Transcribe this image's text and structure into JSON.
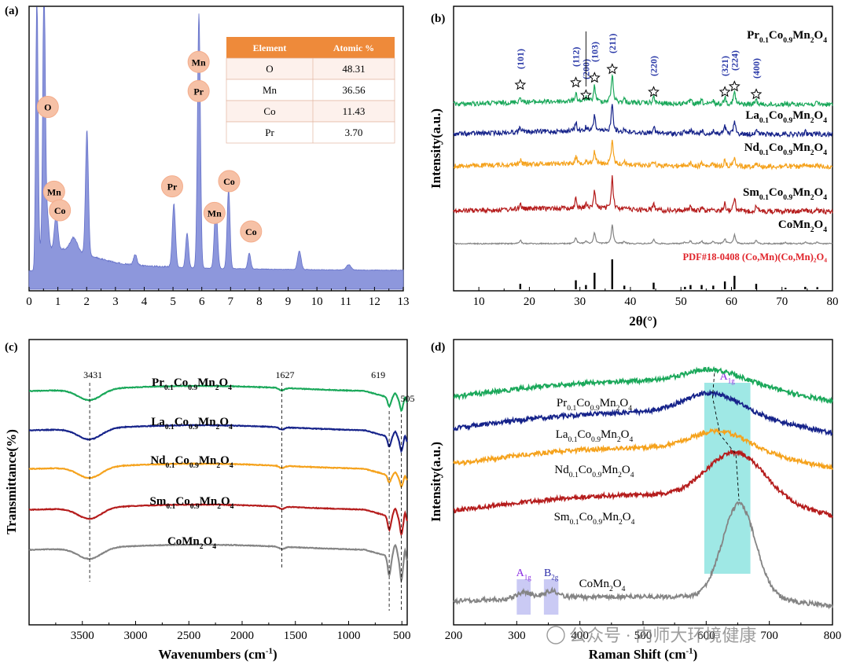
{
  "panels": {
    "a": {
      "label": "(a)",
      "chart_data": {
        "type": "area",
        "xlim": [
          0,
          13
        ],
        "xticks": [
          "0",
          "1",
          "2",
          "3",
          "4",
          "5",
          "6",
          "7",
          "8",
          "9",
          "10",
          "11",
          "12",
          "13"
        ],
        "peaks": [
          {
            "x": 0.27,
            "y": 1.02,
            "w": 0.04
          },
          {
            "x": 0.52,
            "y": 1.02,
            "w": 0.045
          },
          {
            "x": 0.64,
            "y": 0.12,
            "w": 0.05
          },
          {
            "x": 0.94,
            "y": 0.13,
            "w": 0.06
          },
          {
            "x": 1.55,
            "y": 0.05,
            "w": 0.12
          },
          {
            "x": 2.01,
            "y": 0.47,
            "w": 0.05
          },
          {
            "x": 3.69,
            "y": 0.04,
            "w": 0.06
          },
          {
            "x": 5.03,
            "y": 0.24,
            "w": 0.055
          },
          {
            "x": 5.49,
            "y": 0.13,
            "w": 0.05
          },
          {
            "x": 5.9,
            "y": 0.96,
            "w": 0.05
          },
          {
            "x": 6.49,
            "y": 0.24,
            "w": 0.055
          },
          {
            "x": 6.93,
            "y": 0.3,
            "w": 0.05
          },
          {
            "x": 7.65,
            "y": 0.06,
            "w": 0.05
          },
          {
            "x": 9.39,
            "y": 0.07,
            "w": 0.06
          },
          {
            "x": 11.1,
            "y": 0.02,
            "w": 0.08
          }
        ],
        "peak_labels": [
          {
            "text": "O",
            "x": 0.65,
            "y": 0.62
          },
          {
            "text": "Mn",
            "x": 0.87,
            "y": 0.3
          },
          {
            "text": "Co",
            "x": 1.07,
            "y": 0.23
          },
          {
            "text": "Pr",
            "x": 4.97,
            "y": 0.32
          },
          {
            "text": "Mn",
            "x": 5.89,
            "y": 0.79
          },
          {
            "text": "Pr",
            "x": 5.89,
            "y": 0.68
          },
          {
            "text": "Mn",
            "x": 6.44,
            "y": 0.22
          },
          {
            "text": "Co",
            "x": 6.95,
            "y": 0.34
          },
          {
            "text": "Co",
            "x": 7.71,
            "y": 0.15
          }
        ],
        "table": {
          "headers": [
            "Element",
            "Atomic %"
          ],
          "rows": [
            [
              "O",
              "48.31"
            ],
            [
              "Mn",
              "36.56"
            ],
            [
              "Co",
              "11.43"
            ],
            [
              "Pr",
              "3.70"
            ]
          ]
        },
        "colors": {
          "fill": "#8d97dc",
          "line": "#6470c8",
          "badge": "#f6c1a6",
          "header": "#ee8a3a"
        }
      }
    },
    "b": {
      "label": "(b)",
      "chart_data": {
        "type": "line",
        "xlabel": "2θ(°)",
        "ylabel": "Intensity(a.u.)",
        "xlim": [
          5,
          80
        ],
        "xticks": [
          "10",
          "20",
          "30",
          "40",
          "50",
          "60",
          "70",
          "80"
        ],
        "peaks": [
          [
            18.2,
            0.18
          ],
          [
            29.2,
            0.3
          ],
          [
            31.2,
            0.14
          ],
          [
            32.9,
            0.55
          ],
          [
            36.4,
            1.0
          ],
          [
            38.8,
            0.12
          ],
          [
            44.6,
            0.22
          ],
          [
            50.8,
            0.08
          ],
          [
            51.9,
            0.14
          ],
          [
            54.1,
            0.14
          ],
          [
            56.4,
            0.12
          ],
          [
            58.7,
            0.26
          ],
          [
            60.6,
            0.45
          ],
          [
            64.9,
            0.18
          ],
          [
            70.7,
            0.05
          ],
          [
            74.6,
            0.08
          ],
          [
            77.0,
            0.07
          ]
        ],
        "series": [
          {
            "name_parts": [
              [
                "Pr",
                ""
              ],
              [
                "0.1",
                "sub"
              ],
              [
                "Co",
                ""
              ],
              [
                "0.9",
                "sub"
              ],
              [
                "Mn",
                ""
              ],
              [
                "2",
                "sub"
              ],
              [
                "O",
                ""
              ],
              [
                "4",
                "sub"
              ]
            ],
            "color": "#1aa85a"
          },
          {
            "name_parts": [
              [
                "La",
                ""
              ],
              [
                "0.1",
                "sub"
              ],
              [
                "Co",
                ""
              ],
              [
                "0.9",
                "sub"
              ],
              [
                "Mn",
                ""
              ],
              [
                "2",
                "sub"
              ],
              [
                "O",
                ""
              ],
              [
                "4",
                "sub"
              ]
            ],
            "color": "#16238a"
          },
          {
            "name_parts": [
              [
                "Nd",
                ""
              ],
              [
                "0.1",
                "sub"
              ],
              [
                "Co",
                ""
              ],
              [
                "0.9",
                "sub"
              ],
              [
                "Mn",
                ""
              ],
              [
                "2",
                "sub"
              ],
              [
                "O",
                ""
              ],
              [
                "4",
                "sub"
              ]
            ],
            "color": "#f5a21c"
          },
          {
            "name_parts": [
              [
                "Sm",
                ""
              ],
              [
                "0.1",
                "sub"
              ],
              [
                "Co",
                ""
              ],
              [
                "0.9",
                "sub"
              ],
              [
                "Mn",
                ""
              ],
              [
                "2",
                "sub"
              ],
              [
                "O",
                ""
              ],
              [
                "4",
                "sub"
              ]
            ],
            "color": "#b51c1c"
          },
          {
            "name_parts": [
              [
                "CoMn",
                ""
              ],
              [
                "2",
                "sub"
              ],
              [
                "O",
                ""
              ],
              [
                "4",
                "sub"
              ]
            ],
            "color": "#848484"
          }
        ],
        "reference_label": "PDF#18-0408 (Co,Mn)(Co,Mn)₂O₄",
        "reference_color": "#e0242b",
        "hkl": [
          {
            "text": "(101)",
            "x": 18.2
          },
          {
            "text": "(112)",
            "x": 29.2
          },
          {
            "text": "(200)",
            "x": 31.2
          },
          {
            "text": "(103)",
            "x": 32.9
          },
          {
            "text": "(211)",
            "x": 36.4
          },
          {
            "text": "(220)",
            "x": 44.6
          },
          {
            "text": "(321)",
            "x": 58.7
          },
          {
            "text": "(224)",
            "x": 60.6
          },
          {
            "text": "(400)",
            "x": 64.9
          }
        ],
        "star": "☆"
      }
    },
    "c": {
      "label": "(c)",
      "chart_data": {
        "type": "line",
        "xlabel_parts": [
          [
            "Wavenumbers (cm",
            ""
          ],
          [
            "-1",
            "sup"
          ],
          [
            ")",
            ""
          ]
        ],
        "ylabel": "Transmittance(%)",
        "xlim": [
          4000,
          450
        ],
        "xticks": [
          "3500",
          "3000",
          "2500",
          "2000",
          "1500",
          "1000",
          "500"
        ],
        "annotations": [
          {
            "text": "3431",
            "x": 3431
          },
          {
            "text": "1627",
            "x": 1627
          },
          {
            "text": "619",
            "x": 619
          },
          {
            "text": "505",
            "x": 505
          }
        ],
        "series": [
          {
            "name_parts": [
              [
                "Pr",
                ""
              ],
              [
                "0.1",
                "sub"
              ],
              [
                "Co",
                ""
              ],
              [
                "0.9",
                "sub"
              ],
              [
                "Mn",
                ""
              ],
              [
                "2",
                "sub"
              ],
              [
                "O",
                ""
              ],
              [
                "4",
                "sub"
              ]
            ],
            "color": "#1aa85a"
          },
          {
            "name_parts": [
              [
                "La",
                ""
              ],
              [
                "0.1",
                "sub"
              ],
              [
                "Co",
                ""
              ],
              [
                "0.9",
                "sub"
              ],
              [
                "Mn",
                ""
              ],
              [
                "2",
                "sub"
              ],
              [
                "O",
                ""
              ],
              [
                "4",
                "sub"
              ]
            ],
            "color": "#16238a"
          },
          {
            "name_parts": [
              [
                "Nd",
                ""
              ],
              [
                "0.1",
                "sub"
              ],
              [
                "Co",
                ""
              ],
              [
                "0.9",
                "sub"
              ],
              [
                "Mn",
                ""
              ],
              [
                "2",
                "sub"
              ],
              [
                "O",
                ""
              ],
              [
                "4",
                "sub"
              ]
            ],
            "color": "#f5a21c"
          },
          {
            "name_parts": [
              [
                "Sm",
                ""
              ],
              [
                "0.1",
                "sub"
              ],
              [
                "Co",
                ""
              ],
              [
                "0.9",
                "sub"
              ],
              [
                "Mn",
                ""
              ],
              [
                "2",
                "sub"
              ],
              [
                "O",
                ""
              ],
              [
                "4",
                "sub"
              ]
            ],
            "color": "#b51c1c"
          },
          {
            "name_parts": [
              [
                "CoMn",
                ""
              ],
              [
                "2",
                "sub"
              ],
              [
                "O",
                ""
              ],
              [
                "4",
                "sub"
              ]
            ],
            "color": "#848484"
          }
        ]
      }
    },
    "d": {
      "label": "(d)",
      "chart_data": {
        "type": "line",
        "xlabel_parts": [
          [
            "Raman Shift (cm",
            ""
          ],
          [
            "-1",
            "sup"
          ],
          [
            ")",
            ""
          ]
        ],
        "ylabel": "Intensity(a.u.)",
        "xlim": [
          200,
          800
        ],
        "xticks": [
          "200",
          "300",
          "400",
          "500",
          "600",
          "700",
          "800"
        ],
        "bands": [
          {
            "label_parts": [
              [
                "A",
                ""
              ],
              [
                "1g",
                "sub"
              ]
            ],
            "from": 597,
            "to": 670,
            "color": "#7fe0dc",
            "label_color": "#8a2be2"
          },
          {
            "label_parts": [
              [
                "A",
                ""
              ],
              [
                "1g",
                "sub"
              ]
            ],
            "from": 300,
            "to": 322,
            "color": "#b8b8f0",
            "label_color": "#8a2be2"
          },
          {
            "label_parts": [
              [
                "B",
                ""
              ],
              [
                "2g",
                "sub"
              ]
            ],
            "from": 343,
            "to": 366,
            "color": "#b8b8f0",
            "label_color": "#2a2aa8"
          }
        ],
        "peak_positions": [
          613,
          610,
          622,
          647,
          652
        ],
        "series": [
          {
            "name_parts": [
              [
                "Pr",
                ""
              ],
              [
                "0.1",
                "sub"
              ],
              [
                "Co",
                ""
              ],
              [
                "0.9",
                "sub"
              ],
              [
                "Mn",
                ""
              ],
              [
                "2",
                "sub"
              ],
              [
                "O",
                ""
              ],
              [
                "4",
                "sub"
              ]
            ],
            "color": "#1aa85a"
          },
          {
            "name_parts": [
              [
                "La",
                ""
              ],
              [
                "0.1",
                "sub"
              ],
              [
                "Co",
                ""
              ],
              [
                "0.9",
                "sub"
              ],
              [
                "Mn",
                ""
              ],
              [
                "2",
                "sub"
              ],
              [
                "O",
                ""
              ],
              [
                "4",
                "sub"
              ]
            ],
            "color": "#16238a"
          },
          {
            "name_parts": [
              [
                "Nd",
                ""
              ],
              [
                "0.1",
                "sub"
              ],
              [
                "Co",
                ""
              ],
              [
                "0.9",
                "sub"
              ],
              [
                "Mn",
                ""
              ],
              [
                "2",
                "sub"
              ],
              [
                "O",
                ""
              ],
              [
                "4",
                "sub"
              ]
            ],
            "color": "#f5a21c"
          },
          {
            "name_parts": [
              [
                "Sm",
                ""
              ],
              [
                "0.1",
                "sub"
              ],
              [
                "Co",
                ""
              ],
              [
                "0.9",
                "sub"
              ],
              [
                "Mn",
                ""
              ],
              [
                "2",
                "sub"
              ],
              [
                "O",
                ""
              ],
              [
                "4",
                "sub"
              ]
            ],
            "color": "#b51c1c"
          },
          {
            "name_parts": [
              [
                "CoMn",
                ""
              ],
              [
                "2",
                "sub"
              ],
              [
                "O",
                ""
              ],
              [
                "4",
                "sub"
              ]
            ],
            "color": "#848484"
          }
        ],
        "watermark": "公众号 · 内师大环境健康"
      }
    }
  }
}
